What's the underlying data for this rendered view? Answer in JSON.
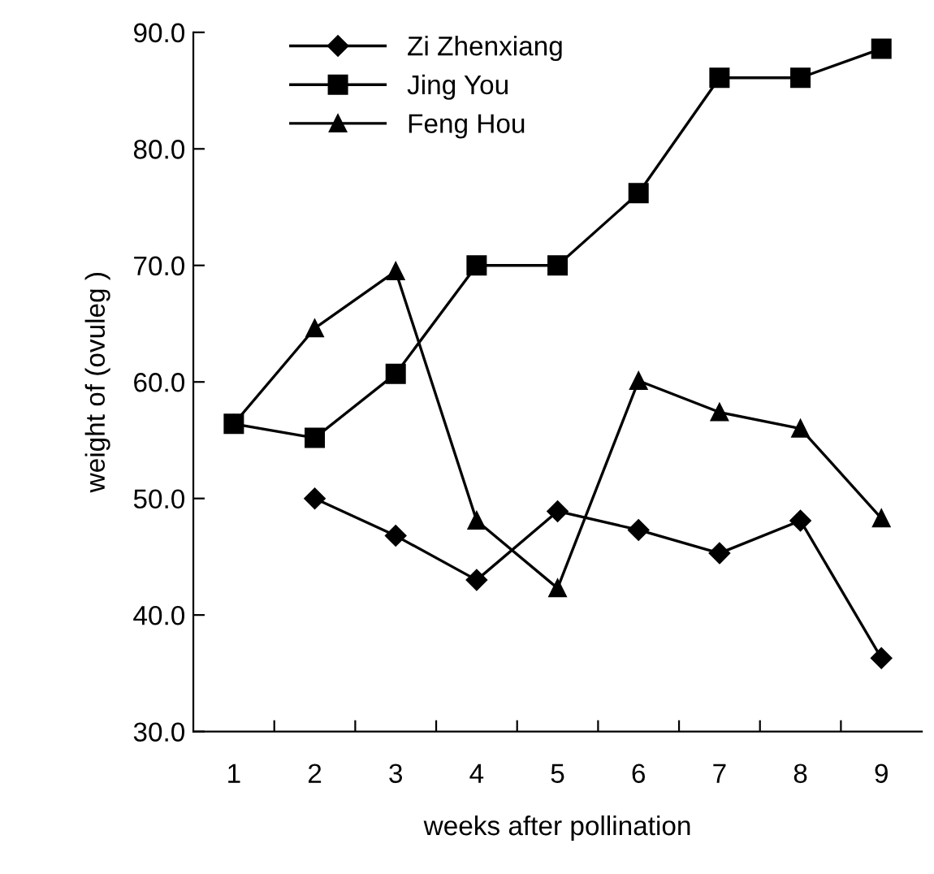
{
  "chart_data": {
    "type": "line",
    "xlabel": "weeks after pollination",
    "ylabel": "weight of (ovuleg )",
    "categories": [
      "1",
      "2",
      "3",
      "4",
      "5",
      "6",
      "7",
      "8",
      "9"
    ],
    "series": [
      {
        "name": "Zi Zhenxiang",
        "color": "#000000",
        "marker": "diamond",
        "values": [
          null,
          50.0,
          46.8,
          43.0,
          48.9,
          47.3,
          45.3,
          48.1,
          36.3
        ]
      },
      {
        "name": "Jing You",
        "color": "#000000",
        "marker": "square",
        "values": [
          56.4,
          55.2,
          60.7,
          70.0,
          70.0,
          76.2,
          86.1,
          86.1,
          88.6
        ]
      },
      {
        "name": "Feng Hou",
        "color": "#000000",
        "marker": "triangle",
        "values": [
          56.4,
          64.6,
          69.5,
          48.1,
          42.3,
          60.1,
          57.4,
          56.0,
          48.3
        ]
      }
    ],
    "ylim": [
      30,
      90
    ],
    "yticks": [
      {
        "value": 30,
        "label": "30.0"
      },
      {
        "value": 40,
        "label": "40.0"
      },
      {
        "value": 50,
        "label": "50.0"
      },
      {
        "value": 60,
        "label": "60.0"
      },
      {
        "value": 70,
        "label": "70.0"
      },
      {
        "value": 80,
        "label": "80.0"
      },
      {
        "value": 90,
        "label": "90.0"
      }
    ],
    "legend": "top left",
    "grid": false,
    "line_style": "solid"
  }
}
